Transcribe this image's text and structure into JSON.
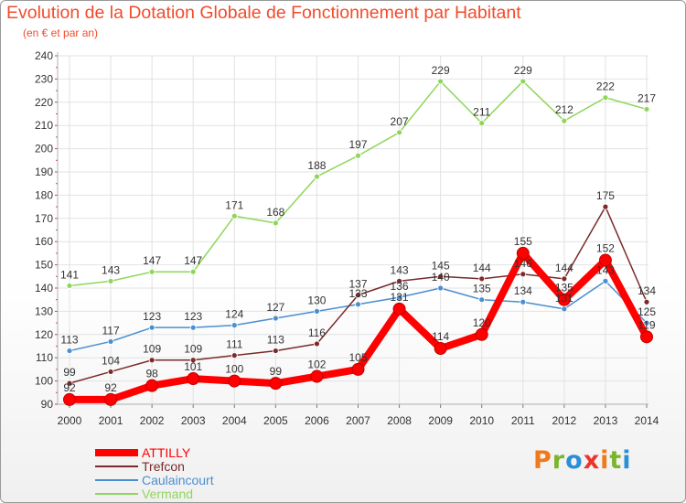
{
  "title": "Evolution de la Dotation Globale de Fonctionnement par Habitant",
  "subtitle": "(en € et par an)",
  "logo": {
    "letters": [
      "P",
      "r",
      "o",
      "x",
      "i",
      "t",
      "i"
    ],
    "colors": [
      "#f07a1a",
      "#7ab52c",
      "#2a8fd6",
      "#e8362a",
      "#f07a1a",
      "#7ab52c",
      "#2a8fd6"
    ]
  },
  "chart_data": {
    "type": "line",
    "x": [
      "2000",
      "2001",
      "2002",
      "2003",
      "2004",
      "2005",
      "2006",
      "2007",
      "2008",
      "2009",
      "2010",
      "2011",
      "2012",
      "2013",
      "2014"
    ],
    "ylim": [
      90,
      240
    ],
    "yticks": [
      "90",
      "100",
      "110",
      "120",
      "130",
      "140",
      "150",
      "160",
      "170",
      "180",
      "190",
      "200",
      "210",
      "220",
      "230",
      "240"
    ],
    "grid": true,
    "legend": "bottom-left",
    "series": [
      {
        "name": "Vermand",
        "color": "#8ed65a",
        "labels": true,
        "values": [
          141,
          143,
          147,
          147,
          171,
          168,
          188,
          197,
          207,
          229,
          211,
          229,
          212,
          222,
          217
        ]
      },
      {
        "name": "Caulaincourt",
        "color": "#4a8fd0",
        "labels": true,
        "values": [
          113,
          117,
          123,
          123,
          124,
          127,
          130,
          133,
          136,
          140,
          135,
          134,
          131,
          143,
          125
        ]
      },
      {
        "name": "Trefcon",
        "color": "#7a2a2a",
        "labels": true,
        "values": [
          99,
          104,
          109,
          109,
          111,
          113,
          116,
          137,
          143,
          145,
          144,
          146,
          144,
          175,
          134
        ]
      },
      {
        "name": "ATTILLY",
        "color": "#ff0000",
        "labels": true,
        "values": [
          92,
          92,
          98,
          101,
          100,
          99,
          102,
          105,
          131,
          114,
          120,
          155,
          135,
          152,
          119
        ]
      }
    ]
  }
}
